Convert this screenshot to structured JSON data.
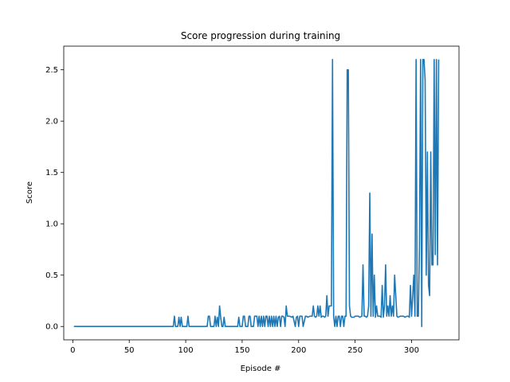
{
  "chart_data": {
    "type": "line",
    "title": "Score progression during training",
    "xlabel": "Episode #",
    "ylabel": "Score",
    "xlim": [
      -8,
      342
    ],
    "ylim": [
      -0.13,
      2.73
    ],
    "xticks": [
      0,
      50,
      100,
      150,
      200,
      250,
      300
    ],
    "yticks": [
      0.0,
      0.5,
      1.0,
      1.5,
      2.0,
      2.5
    ],
    "xtick_labels": [
      "0",
      "50",
      "100",
      "150",
      "200",
      "250",
      "300"
    ],
    "ytick_labels": [
      "0.0",
      "0.5",
      "1.0",
      "1.5",
      "2.0",
      "2.5"
    ],
    "grid": false,
    "series_color": "#1f77b4",
    "series": [
      {
        "name": "",
        "points": [
          [
            1,
            0.0
          ],
          [
            89,
            0.0
          ],
          [
            90,
            0.1
          ],
          [
            91,
            0.0
          ],
          [
            93,
            0.0
          ],
          [
            94,
            0.09
          ],
          [
            95,
            0.0
          ],
          [
            96,
            0.09
          ],
          [
            97,
            0.0
          ],
          [
            101,
            0.0
          ],
          [
            102,
            0.1
          ],
          [
            103,
            0.0
          ],
          [
            119,
            0.0
          ],
          [
            120,
            0.1
          ],
          [
            121,
            0.1
          ],
          [
            122,
            0.0
          ],
          [
            125,
            0.0
          ],
          [
            126,
            0.1
          ],
          [
            127,
            0.0
          ],
          [
            128,
            0.09
          ],
          [
            129,
            0.0
          ],
          [
            130,
            0.2
          ],
          [
            131,
            0.09
          ],
          [
            132,
            0.0
          ],
          [
            133,
            0.0
          ],
          [
            134,
            0.09
          ],
          [
            135,
            0.0
          ],
          [
            146,
            0.0
          ],
          [
            147,
            0.09
          ],
          [
            148,
            0.0
          ],
          [
            150,
            0.0
          ],
          [
            151,
            0.1
          ],
          [
            152,
            0.1
          ],
          [
            153,
            0.0
          ],
          [
            155,
            0.0
          ],
          [
            156,
            0.1
          ],
          [
            157,
            0.1
          ],
          [
            158,
            0.0
          ],
          [
            160,
            0.0
          ],
          [
            161,
            0.1
          ],
          [
            162,
            0.1
          ],
          [
            163,
            0.1
          ],
          [
            164,
            0.0
          ],
          [
            165,
            0.1
          ],
          [
            166,
            0.0
          ],
          [
            167,
            0.1
          ],
          [
            168,
            0.0
          ],
          [
            169,
            0.1
          ],
          [
            170,
            0.0
          ],
          [
            171,
            0.1
          ],
          [
            172,
            0.1
          ],
          [
            173,
            0.0
          ],
          [
            174,
            0.1
          ],
          [
            175,
            0.0
          ],
          [
            176,
            0.1
          ],
          [
            177,
            0.0
          ],
          [
            178,
            0.1
          ],
          [
            179,
            0.0
          ],
          [
            180,
            0.1
          ],
          [
            181,
            0.0
          ],
          [
            182,
            0.09
          ],
          [
            183,
            0.1
          ],
          [
            184,
            0.0
          ],
          [
            185,
            0.1
          ],
          [
            186,
            0.1
          ],
          [
            187,
            0.09
          ],
          [
            188,
            0.0
          ],
          [
            189,
            0.2
          ],
          [
            190,
            0.1
          ],
          [
            192,
            0.1
          ],
          [
            194,
            0.09
          ],
          [
            195,
            0.1
          ],
          [
            197,
            0.0
          ],
          [
            198,
            0.09
          ],
          [
            199,
            0.1
          ],
          [
            200,
            0.0
          ],
          [
            201,
            0.1
          ],
          [
            203,
            0.1
          ],
          [
            204,
            0.0
          ],
          [
            206,
            0.1
          ],
          [
            207,
            0.1
          ],
          [
            208,
            0.09
          ],
          [
            210,
            0.1
          ],
          [
            212,
            0.1
          ],
          [
            213,
            0.2
          ],
          [
            214,
            0.1
          ],
          [
            215,
            0.09
          ],
          [
            216,
            0.1
          ],
          [
            217,
            0.2
          ],
          [
            218,
            0.1
          ],
          [
            219,
            0.2
          ],
          [
            220,
            0.09
          ],
          [
            221,
            0.1
          ],
          [
            222,
            0.1
          ],
          [
            223,
            0.09
          ],
          [
            224,
            0.1
          ],
          [
            225,
            0.3
          ],
          [
            226,
            0.1
          ],
          [
            227,
            0.2
          ],
          [
            229,
            0.2
          ],
          [
            230,
            2.6
          ],
          [
            231,
            0.1
          ],
          [
            232,
            0.0
          ],
          [
            233,
            0.1
          ],
          [
            234,
            0.0
          ],
          [
            235,
            0.1
          ],
          [
            236,
            0.1
          ],
          [
            237,
            0.0
          ],
          [
            238,
            0.1
          ],
          [
            239,
            0.1
          ],
          [
            240,
            0.0
          ],
          [
            241,
            0.1
          ],
          [
            242,
            0.1
          ],
          [
            243,
            2.5
          ],
          [
            244,
            2.5
          ],
          [
            245,
            0.2
          ],
          [
            246,
            0.1
          ],
          [
            247,
            0.09
          ],
          [
            249,
            0.09
          ],
          [
            250,
            0.1
          ],
          [
            253,
            0.1
          ],
          [
            254,
            0.09
          ],
          [
            256,
            0.1
          ],
          [
            257,
            0.6
          ],
          [
            258,
            0.1
          ],
          [
            259,
            0.1
          ],
          [
            260,
            0.09
          ],
          [
            261,
            0.1
          ],
          [
            262,
            0.2
          ],
          [
            263,
            1.3
          ],
          [
            264,
            0.1
          ],
          [
            265,
            0.9
          ],
          [
            266,
            0.1
          ],
          [
            267,
            0.5
          ],
          [
            268,
            0.09
          ],
          [
            269,
            0.2
          ],
          [
            270,
            0.1
          ],
          [
            272,
            0.1
          ],
          [
            273,
            0.09
          ],
          [
            274,
            0.4
          ],
          [
            275,
            0.09
          ],
          [
            276,
            0.2
          ],
          [
            277,
            0.6
          ],
          [
            278,
            0.1
          ],
          [
            279,
            0.2
          ],
          [
            280,
            0.1
          ],
          [
            281,
            0.3
          ],
          [
            282,
            0.1
          ],
          [
            283,
            0.2
          ],
          [
            284,
            0.1
          ],
          [
            285,
            0.5
          ],
          [
            286,
            0.3
          ],
          [
            287,
            0.1
          ],
          [
            288,
            0.09
          ],
          [
            290,
            0.1
          ],
          [
            293,
            0.1
          ],
          [
            294,
            0.09
          ],
          [
            296,
            0.1
          ],
          [
            297,
            0.1
          ],
          [
            298,
            0.09
          ],
          [
            299,
            0.4
          ],
          [
            300,
            0.1
          ],
          [
            301,
            0.3
          ],
          [
            302,
            0.5
          ],
          [
            303,
            0.1
          ],
          [
            304,
            2.6
          ],
          [
            305,
            0.1
          ],
          [
            306,
            0.1
          ],
          [
            307,
            0.8
          ],
          [
            308,
            2.6
          ],
          [
            309,
            0.0
          ],
          [
            310,
            2.6
          ],
          [
            311,
            2.6
          ],
          [
            312,
            2.4
          ],
          [
            313,
            0.5
          ],
          [
            314,
            1.7
          ],
          [
            315,
            0.4
          ],
          [
            316,
            0.3
          ],
          [
            317,
            1.7
          ],
          [
            318,
            0.6
          ],
          [
            319,
            0.6
          ],
          [
            320,
            2.6
          ],
          [
            321,
            0.7
          ],
          [
            322,
            2.6
          ],
          [
            323,
            0.6
          ],
          [
            324,
            2.6
          ]
        ]
      }
    ]
  }
}
